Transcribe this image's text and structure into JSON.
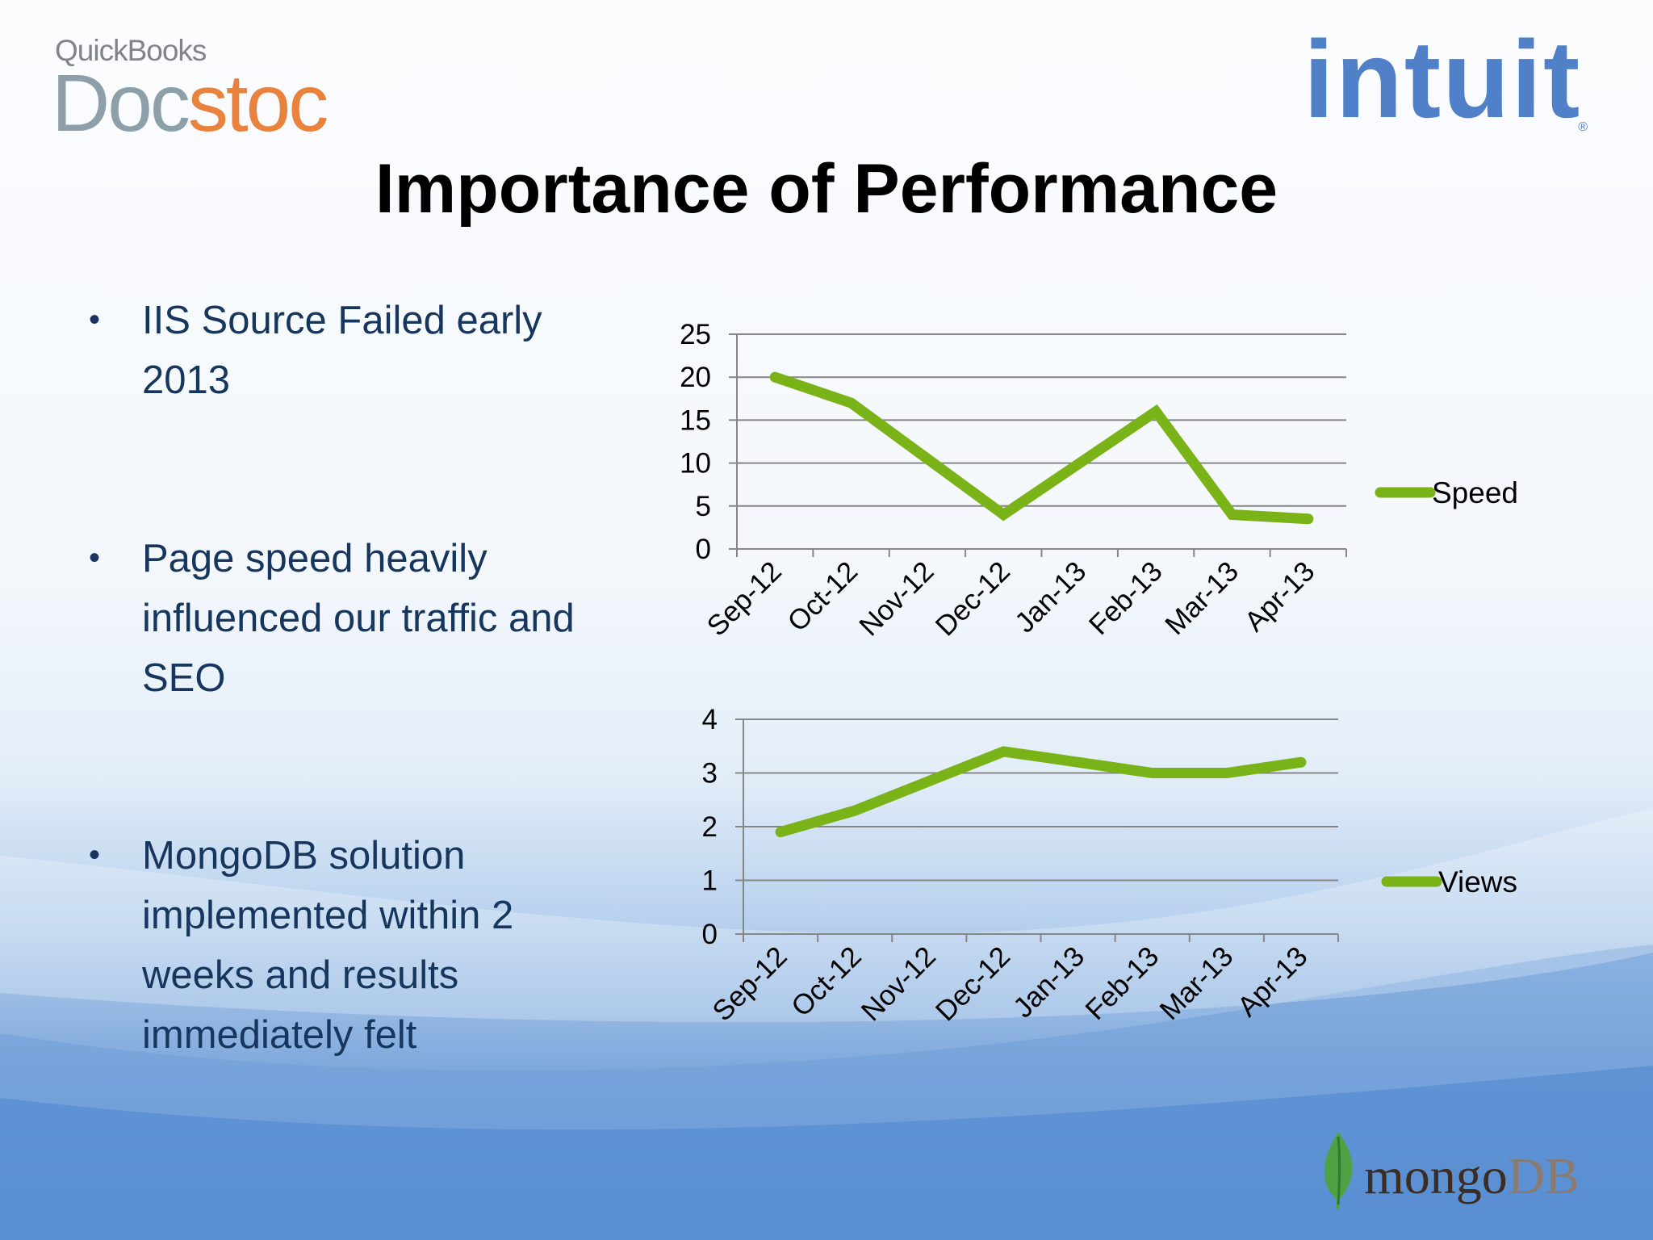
{
  "slide": {
    "title": "Importance of Performance"
  },
  "logos": {
    "quickbooks": "QuickBooks",
    "docstoc_a": "Doc",
    "docstoc_b": "stoc",
    "intuit": "intuit",
    "intuit_mark": "®",
    "mongo_a": "mongo",
    "mongo_b": "DB"
  },
  "bullets": [
    {
      "marker": "•",
      "text": "IIS Source Failed early 2013"
    },
    {
      "marker": "•",
      "text": "Page speed heavily influenced our traffic and SEO"
    },
    {
      "marker": "•",
      "text": "MongoDB solution implemented within 2 weeks and results immediately felt"
    }
  ],
  "colors": {
    "series": "#7ab317",
    "grid": "#868686",
    "title": "#000000",
    "bullet_text": "#17365d"
  },
  "chart_data": [
    {
      "type": "line",
      "categories": [
        "Sep-12",
        "Oct-12",
        "Nov-12",
        "Dec-12",
        "Jan-13",
        "Feb-13",
        "Mar-13",
        "Apr-13"
      ],
      "series": [
        {
          "name": "Speed",
          "values": [
            20,
            17,
            10.5,
            4,
            10,
            16,
            4,
            3.5
          ]
        }
      ],
      "ylim": [
        0,
        25
      ],
      "yticks": [
        0,
        5,
        10,
        15,
        20,
        25
      ],
      "grid": true,
      "legend": "right"
    },
    {
      "type": "line",
      "categories": [
        "Sep-12",
        "Oct-12",
        "Nov-12",
        "Dec-12",
        "Jan-13",
        "Feb-13",
        "Mar-13",
        "Apr-13"
      ],
      "series": [
        {
          "name": "Views",
          "values": [
            1.9,
            2.3,
            2.85,
            3.4,
            3.2,
            3.0,
            3.0,
            3.2
          ]
        }
      ],
      "ylim": [
        0,
        4
      ],
      "yticks": [
        0,
        1,
        2,
        3,
        4
      ],
      "grid": true,
      "legend": "right"
    }
  ]
}
